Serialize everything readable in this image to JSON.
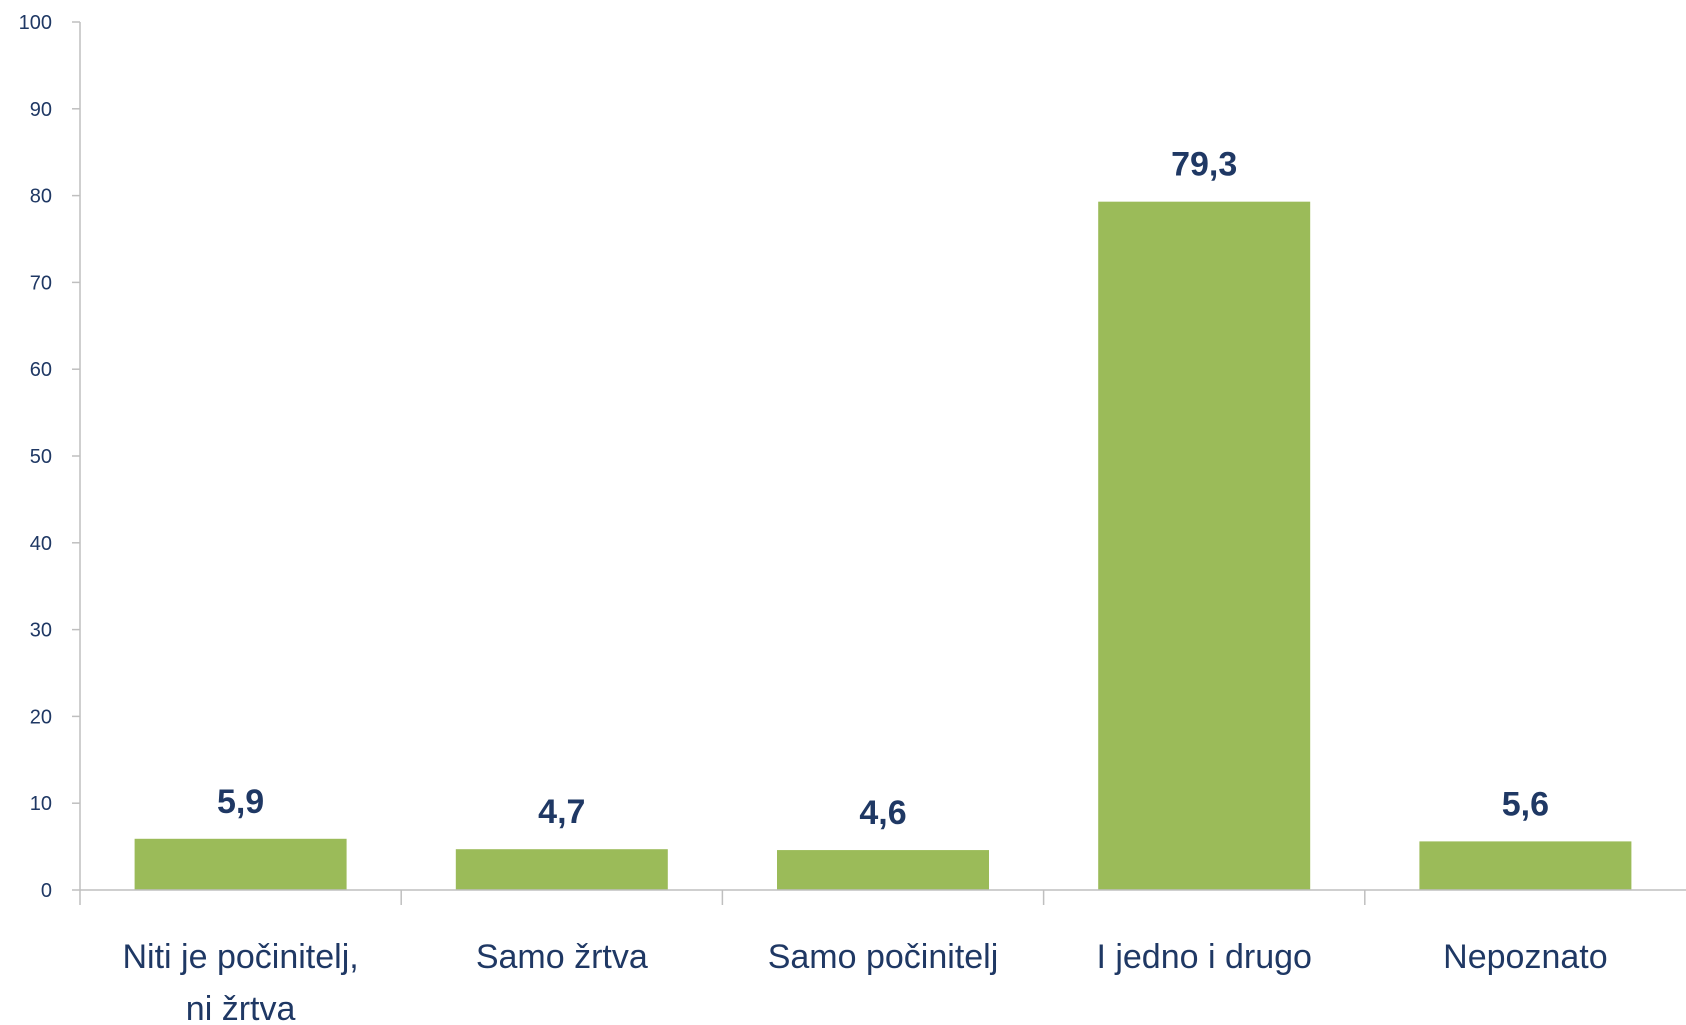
{
  "chart_data": {
    "type": "bar",
    "categories": [
      [
        "Niti je počinitelj,",
        "ni žrtva"
      ],
      [
        "Samo žrtva"
      ],
      [
        "Samo počinitelj"
      ],
      [
        "I jedno i drugo"
      ],
      [
        "Nepoznato"
      ]
    ],
    "values": [
      5.9,
      4.7,
      4.6,
      79.3,
      5.6
    ],
    "data_labels": [
      "5,9",
      "4,7",
      "4,6",
      "79,3",
      "5,6"
    ],
    "ylim": [
      0,
      100
    ],
    "yticks": [
      0,
      10,
      20,
      30,
      40,
      50,
      60,
      70,
      80,
      90,
      100
    ],
    "grid": false,
    "legend": "none",
    "colors": {
      "bar": "#9bbb59",
      "axis": "#bfbfbf",
      "text": "#1f3864"
    }
  }
}
